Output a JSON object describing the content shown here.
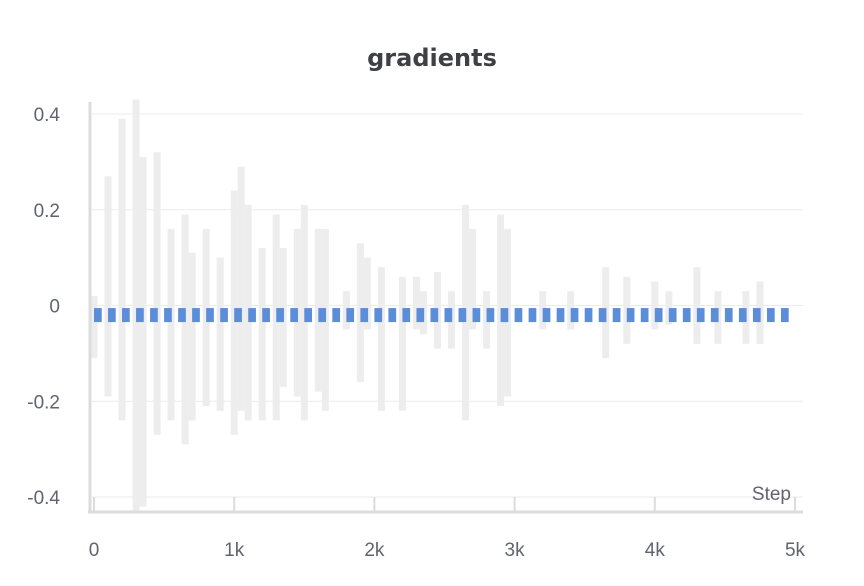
{
  "chart_data": {
    "type": "bar",
    "title": "gradients",
    "xlabel": "Step",
    "ylabel": "",
    "xlim": [
      0,
      5000
    ],
    "ylim": [
      -0.42,
      0.42
    ],
    "x_ticks": [
      0,
      1000,
      2000,
      3000,
      4000,
      5000
    ],
    "x_tick_labels": [
      "0",
      "1k",
      "2k",
      "3k",
      "4k",
      "5k"
    ],
    "y_ticks": [
      0.4,
      0.2,
      0,
      -0.2,
      -0.4
    ],
    "y_tick_labels": [
      "0.4",
      "0.2",
      "0",
      "-0.2",
      "-0.4"
    ],
    "grid": true,
    "colors": {
      "range": "#ededed",
      "histogram": "#5b8dd9",
      "grid": "#ebebeb",
      "axis": "#dcdcdc"
    },
    "series": [
      {
        "kind": "range",
        "x": [
          0,
          100,
          200,
          300,
          350,
          450,
          550,
          650,
          700,
          800,
          900,
          1000,
          1050,
          1100,
          1200,
          1300,
          1350,
          1450,
          1500,
          1600,
          1650,
          1800,
          1900,
          1950,
          2050,
          2200,
          2300,
          2350,
          2450,
          2550,
          2650,
          2700,
          2800,
          2900,
          2950
        ],
        "min": [
          -0.11,
          -0.19,
          -0.24,
          -0.43,
          -0.42,
          -0.27,
          -0.24,
          -0.29,
          -0.24,
          -0.21,
          -0.22,
          -0.27,
          -0.22,
          -0.24,
          -0.24,
          -0.24,
          -0.17,
          -0.19,
          -0.24,
          -0.18,
          -0.22,
          -0.05,
          -0.16,
          -0.05,
          -0.22,
          -0.22,
          -0.05,
          -0.06,
          -0.09,
          -0.09,
          -0.24,
          -0.05,
          -0.09,
          -0.21,
          -0.19
        ],
        "max": [
          0.02,
          0.27,
          0.39,
          0.43,
          0.31,
          0.32,
          0.16,
          0.19,
          0.11,
          0.16,
          0.1,
          0.24,
          0.29,
          0.21,
          0.12,
          0.19,
          0.12,
          0.16,
          0.21,
          0.16,
          0.16,
          0.03,
          0.13,
          0.1,
          0.08,
          0.06,
          0.06,
          0.03,
          0.07,
          0.03,
          0.21,
          0.16,
          0.03,
          0.19,
          0.16
        ]
      },
      {
        "kind": "range",
        "x": [
          3200,
          3400,
          3650,
          3800,
          4000,
          4100,
          4300,
          4450,
          4650,
          4750
        ],
        "min": [
          -0.05,
          -0.05,
          -0.11,
          -0.08,
          -0.05,
          -0.04,
          -0.08,
          -0.08,
          -0.08,
          -0.08
        ],
        "max": [
          0.03,
          0.03,
          0.08,
          0.06,
          0.05,
          0.03,
          0.08,
          0.03,
          0.03,
          0.05
        ]
      },
      {
        "kind": "histogram-band",
        "y": -0.02,
        "x_start": 0,
        "x_end": 5000,
        "bin_count": 50
      }
    ]
  }
}
